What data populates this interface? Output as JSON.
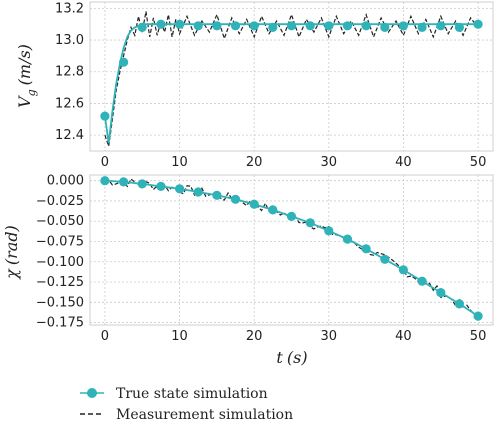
{
  "chart_data": [
    {
      "type": "line",
      "xlabel": "",
      "ylabel": "V_g (m/s)",
      "ylabel_main": "V",
      "ylabel_sub": "g",
      "ylabel_unit": "(m/s)",
      "xlim": [
        -2,
        52
      ],
      "ylim": [
        12.3,
        13.24
      ],
      "xticks": [
        0,
        10,
        20,
        30,
        40,
        50
      ],
      "xtick_labels": [
        "0",
        "10",
        "20",
        "30",
        "40",
        "50"
      ],
      "yticks": [
        12.4,
        12.6,
        12.8,
        13.0,
        13.2
      ],
      "ytick_labels": [
        "12.4",
        "12.6",
        "12.8",
        "13.0",
        "13.2"
      ],
      "grid": true,
      "series": [
        {
          "name": "True state simulation",
          "style": "solid-with-markers",
          "color": "#2fb3b8",
          "x": [
            0,
            0.5,
            1,
            1.5,
            2,
            2.5,
            3,
            3.5,
            4,
            4.5,
            5,
            6,
            7,
            8,
            10,
            15,
            20,
            25,
            30,
            35,
            40,
            45,
            50
          ],
          "y": [
            12.52,
            12.35,
            12.55,
            12.72,
            12.85,
            12.95,
            13.02,
            13.06,
            13.08,
            13.09,
            13.1,
            13.1,
            13.1,
            13.1,
            13.1,
            13.1,
            13.1,
            13.1,
            13.1,
            13.1,
            13.1,
            13.1,
            13.1
          ],
          "marker_x": [
            0,
            2.5,
            5,
            7.5,
            10,
            12.5,
            15,
            17.5,
            20,
            22.5,
            25,
            27.5,
            30,
            32.5,
            35,
            37.5,
            40,
            42.5,
            45,
            47.5,
            50
          ],
          "marker_y": [
            12.52,
            12.86,
            13.08,
            13.1,
            13.1,
            13.09,
            13.09,
            13.09,
            13.09,
            13.08,
            13.09,
            13.09,
            13.09,
            13.09,
            13.09,
            13.08,
            13.09,
            13.08,
            13.09,
            13.08,
            13.1
          ]
        },
        {
          "name": "Measurement simulation",
          "style": "dashed",
          "color": "#222222",
          "x": [
            0,
            0.5,
            1,
            1.5,
            2,
            2.5,
            3,
            3.5,
            4,
            4.5,
            5,
            5.5,
            6,
            6.5,
            7,
            7.5,
            8,
            8.5,
            9,
            9.5,
            10,
            11,
            12,
            13,
            14,
            15,
            16,
            17,
            18,
            19,
            20,
            21,
            22,
            23,
            24,
            25,
            26,
            27,
            28,
            29,
            30,
            31,
            32,
            33,
            34,
            35,
            36,
            37,
            38,
            39,
            40,
            41,
            42,
            43,
            44,
            45,
            46,
            47,
            48,
            49,
            50
          ],
          "y": [
            12.4,
            12.33,
            12.5,
            12.68,
            12.8,
            12.9,
            13.0,
            13.08,
            13.03,
            13.15,
            13.05,
            13.18,
            13.02,
            13.14,
            13.03,
            13.12,
            13.05,
            13.16,
            13.02,
            13.13,
            13.04,
            13.15,
            13.03,
            13.12,
            13.05,
            13.16,
            13.01,
            13.14,
            13.04,
            13.13,
            13.02,
            13.15,
            13.04,
            13.12,
            13.03,
            13.16,
            13.02,
            13.13,
            13.05,
            13.14,
            13.02,
            13.15,
            13.04,
            13.12,
            13.03,
            13.16,
            13.02,
            13.14,
            13.05,
            13.12,
            13.03,
            13.15,
            13.04,
            13.13,
            13.02,
            13.15,
            13.04,
            13.12,
            13.03,
            13.14,
            13.08
          ]
        }
      ]
    },
    {
      "type": "line",
      "xlabel": "t (s)",
      "xlabel_main": "t",
      "xlabel_unit": "(s)",
      "ylabel": "χ (rad)",
      "ylabel_main": "χ",
      "ylabel_unit": "(rad)",
      "xlim": [
        -2,
        52
      ],
      "ylim": [
        -0.178,
        0.007
      ],
      "xticks": [
        0,
        10,
        20,
        30,
        40,
        50
      ],
      "xtick_labels": [
        "0",
        "10",
        "20",
        "30",
        "40",
        "50"
      ],
      "yticks": [
        0.0,
        -0.025,
        -0.05,
        -0.075,
        -0.1,
        -0.125,
        -0.15,
        -0.175
      ],
      "ytick_labels": [
        "0.000",
        "−0.025",
        "−0.050",
        "−0.075",
        "−0.100",
        "−0.125",
        "−0.150",
        "−0.175"
      ],
      "grid": true,
      "series": [
        {
          "name": "True state simulation",
          "style": "solid-with-markers",
          "color": "#2fb3b8",
          "x": [
            0,
            2.5,
            5,
            7.5,
            10,
            12.5,
            15,
            17.5,
            20,
            22.5,
            25,
            27.5,
            30,
            32.5,
            35,
            37.5,
            40,
            42.5,
            45,
            47.5,
            50
          ],
          "y": [
            0.0,
            -0.0015,
            -0.004,
            -0.007,
            -0.01,
            -0.014,
            -0.018,
            -0.023,
            -0.029,
            -0.036,
            -0.044,
            -0.052,
            -0.062,
            -0.072,
            -0.084,
            -0.097,
            -0.11,
            -0.124,
            -0.138,
            -0.152,
            -0.167
          ]
        },
        {
          "name": "Measurement simulation",
          "style": "dashed",
          "color": "#222222",
          "noise": 0.006,
          "x_from": 0,
          "x_to": 50,
          "x_step": 0.5
        }
      ]
    }
  ],
  "legend": {
    "placement": "bottom-left",
    "items": [
      {
        "label": "True state simulation",
        "style": "solid-with-markers",
        "color": "#2fb3b8"
      },
      {
        "label": "Measurement simulation",
        "style": "dashed",
        "color": "#222222"
      }
    ]
  }
}
